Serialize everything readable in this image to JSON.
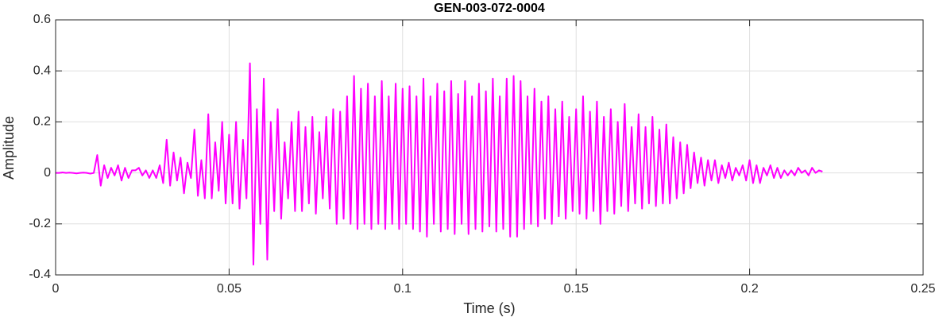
{
  "chart_data": {
    "type": "line",
    "title": "GEN-003-072-0004",
    "x_label": "Time (s)",
    "y_label": "Amplitude",
    "color": "#ff00ff",
    "grid": true,
    "xlim": [
      0,
      0.25
    ],
    "xticks": [
      0,
      0.05,
      0.1,
      0.15,
      0.2,
      0.25
    ],
    "ylim": [
      -0.4,
      0.6
    ],
    "yticks": [
      -0.4,
      -0.2,
      0,
      0.2,
      0.4,
      0.6
    ],
    "x": [
      0,
      0.001,
      0.002,
      0.003,
      0.004,
      0.005,
      0.006,
      0.007,
      0.008,
      0.009,
      0.01,
      0.011,
      0.012,
      0.013,
      0.014,
      0.015,
      0.016,
      0.017,
      0.018,
      0.019,
      0.02,
      0.021,
      0.022,
      0.023,
      0.024,
      0.025,
      0.026,
      0.027,
      0.028,
      0.029,
      0.03,
      0.031,
      0.032,
      0.033,
      0.034,
      0.035,
      0.036,
      0.037,
      0.038,
      0.039,
      0.04,
      0.041,
      0.042,
      0.043,
      0.044,
      0.045,
      0.046,
      0.047,
      0.048,
      0.049,
      0.05,
      0.051,
      0.052,
      0.053,
      0.054,
      0.055,
      0.056,
      0.057,
      0.058,
      0.059,
      0.06,
      0.061,
      0.062,
      0.063,
      0.064,
      0.065,
      0.066,
      0.067,
      0.068,
      0.069,
      0.07,
      0.071,
      0.072,
      0.073,
      0.074,
      0.075,
      0.076,
      0.077,
      0.078,
      0.079,
      0.08,
      0.081,
      0.082,
      0.083,
      0.084,
      0.085,
      0.086,
      0.087,
      0.088,
      0.089,
      0.09,
      0.091,
      0.092,
      0.093,
      0.094,
      0.095,
      0.096,
      0.097,
      0.098,
      0.099,
      0.1,
      0.101,
      0.102,
      0.103,
      0.104,
      0.105,
      0.106,
      0.107,
      0.108,
      0.109,
      0.11,
      0.111,
      0.112,
      0.113,
      0.114,
      0.115,
      0.116,
      0.117,
      0.118,
      0.119,
      0.12,
      0.121,
      0.122,
      0.123,
      0.124,
      0.125,
      0.126,
      0.127,
      0.128,
      0.129,
      0.13,
      0.131,
      0.132,
      0.133,
      0.134,
      0.135,
      0.136,
      0.137,
      0.138,
      0.139,
      0.14,
      0.141,
      0.142,
      0.143,
      0.144,
      0.145,
      0.146,
      0.147,
      0.148,
      0.149,
      0.15,
      0.151,
      0.152,
      0.153,
      0.154,
      0.155,
      0.156,
      0.157,
      0.158,
      0.159,
      0.16,
      0.161,
      0.162,
      0.163,
      0.164,
      0.165,
      0.166,
      0.167,
      0.168,
      0.169,
      0.17,
      0.171,
      0.172,
      0.173,
      0.174,
      0.175,
      0.176,
      0.177,
      0.178,
      0.179,
      0.18,
      0.181,
      0.182,
      0.183,
      0.184,
      0.185,
      0.186,
      0.187,
      0.188,
      0.189,
      0.19,
      0.191,
      0.192,
      0.193,
      0.194,
      0.195,
      0.196,
      0.197,
      0.198,
      0.199,
      0.2,
      0.201,
      0.202,
      0.203,
      0.204,
      0.205,
      0.206,
      0.207,
      0.208,
      0.209,
      0.21,
      0.211,
      0.212,
      0.213,
      0.214,
      0.215,
      0.216,
      0.217,
      0.218,
      0.219,
      0.22,
      0.221
    ],
    "values": [
      0,
      0,
      0.002,
      0,
      0.001,
      0,
      -0.002,
      0,
      0.001,
      0,
      -0.003,
      0,
      0.07,
      -0.05,
      0.03,
      -0.02,
      0.02,
      -0.01,
      0.03,
      -0.03,
      0.02,
      -0.02,
      0.01,
      0.01,
      0.02,
      -0.01,
      0.01,
      -0.02,
      0.01,
      -0.02,
      0.03,
      -0.04,
      0.13,
      -0.05,
      0.08,
      -0.03,
      0.06,
      -0.08,
      0.04,
      -0.02,
      0.17,
      -0.09,
      0.05,
      -0.1,
      0.23,
      -0.1,
      0.12,
      -0.07,
      0.2,
      -0.12,
      0.15,
      -0.12,
      0.2,
      -0.14,
      0.13,
      -0.1,
      0.43,
      -0.36,
      0.25,
      -0.2,
      0.37,
      -0.34,
      0.2,
      -0.15,
      0.25,
      -0.18,
      0.12,
      -0.1,
      0.2,
      -0.15,
      0.24,
      -0.15,
      0.18,
      -0.12,
      0.22,
      -0.16,
      0.16,
      -0.1,
      0.22,
      -0.14,
      0.25,
      -0.2,
      0.24,
      -0.18,
      0.3,
      -0.2,
      0.38,
      -0.22,
      0.33,
      -0.2,
      0.35,
      -0.22,
      0.3,
      -0.2,
      0.36,
      -0.22,
      0.3,
      -0.2,
      0.35,
      -0.22,
      0.33,
      -0.2,
      0.34,
      -0.22,
      0.3,
      -0.23,
      0.37,
      -0.25,
      0.3,
      -0.2,
      0.35,
      -0.23,
      0.32,
      -0.22,
      0.36,
      -0.24,
      0.31,
      -0.2,
      0.36,
      -0.24,
      0.3,
      -0.22,
      0.35,
      -0.23,
      0.32,
      -0.21,
      0.37,
      -0.23,
      0.3,
      -0.22,
      0.37,
      -0.25,
      0.38,
      -0.25,
      0.36,
      -0.22,
      0.3,
      -0.2,
      0.33,
      -0.21,
      0.28,
      -0.18,
      0.3,
      -0.2,
      0.25,
      -0.17,
      0.28,
      -0.18,
      0.22,
      -0.15,
      0.25,
      -0.16,
      0.3,
      -0.18,
      0.24,
      -0.15,
      0.28,
      -0.2,
      0.22,
      -0.15,
      0.25,
      -0.16,
      0.2,
      -0.13,
      0.27,
      -0.15,
      0.18,
      -0.12,
      0.23,
      -0.14,
      0.18,
      -0.12,
      0.22,
      -0.13,
      0.17,
      -0.12,
      0.19,
      -0.12,
      0.14,
      -0.1,
      0.12,
      -0.08,
      0.11,
      -0.06,
      0.08,
      -0.04,
      0.06,
      -0.05,
      0.05,
      -0.03,
      0.05,
      -0.04,
      0.03,
      -0.02,
      0.04,
      -0.03,
      0.02,
      -0.01,
      0.03,
      -0.03,
      0.05,
      -0.04,
      0.03,
      -0.04,
      0.02,
      -0.01,
      0.03,
      -0.02,
      0.02,
      -0.02,
      0.01,
      -0.01,
      0.01,
      -0.01,
      0.02,
      0,
      0.01,
      -0.01,
      0.02,
      0,
      0.01,
      0.005
    ]
  }
}
